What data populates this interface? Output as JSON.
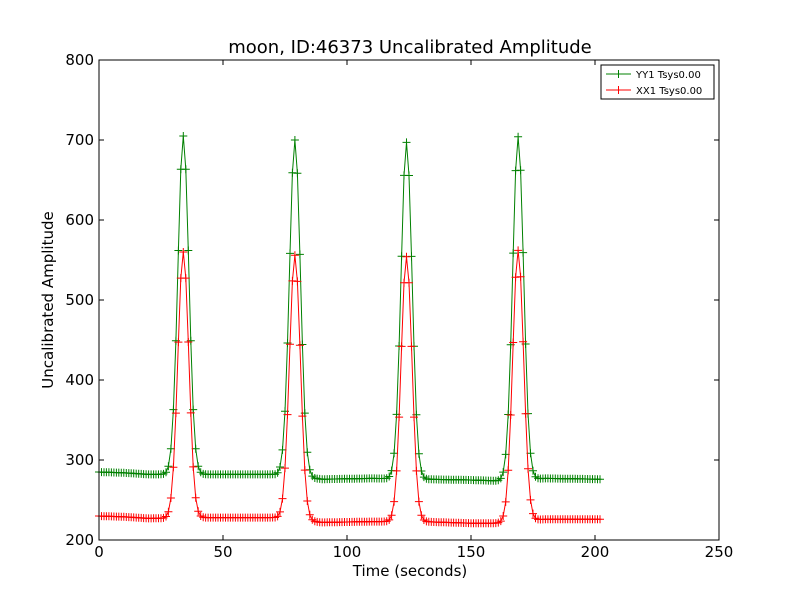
{
  "chart_data": {
    "type": "line",
    "title": "moon, ID:46373 Uncalibrated Amplitude",
    "xlabel": "Time (seconds)",
    "ylabel": "Uncalibrated Amplitude",
    "xlim": [
      0,
      250
    ],
    "ylim": [
      200,
      800
    ],
    "xticks": [
      0,
      50,
      100,
      150,
      200,
      250
    ],
    "yticks": [
      200,
      300,
      400,
      500,
      600,
      700,
      800
    ],
    "grid": false,
    "legend_position": "top-right",
    "marker": "plus",
    "x_range": [
      0,
      202
    ],
    "x_step": 1,
    "peaks_x": [
      34,
      79,
      124,
      169
    ],
    "peak_width_sd": 2.2,
    "series": [
      {
        "name": "YY1 Tsys0.00",
        "color": "#008000",
        "peaks": [
          705,
          700,
          697,
          704
        ],
        "baseline": [
          [
            0,
            285
          ],
          [
            10,
            284
          ],
          [
            20,
            282
          ],
          [
            45,
            282
          ],
          [
            70,
            282
          ],
          [
            90,
            276
          ],
          [
            110,
            277
          ],
          [
            130,
            276
          ],
          [
            150,
            275
          ],
          [
            160,
            274
          ],
          [
            180,
            277
          ],
          [
            202,
            276
          ]
        ]
      },
      {
        "name": "XX1 Tsys0.00",
        "color": "#ff0000",
        "peaks": [
          560,
          556,
          554,
          562
        ],
        "baseline": [
          [
            0,
            230
          ],
          [
            10,
            229
          ],
          [
            20,
            227
          ],
          [
            45,
            228
          ],
          [
            70,
            228
          ],
          [
            90,
            222
          ],
          [
            110,
            223
          ],
          [
            130,
            223
          ],
          [
            150,
            221
          ],
          [
            160,
            221
          ],
          [
            180,
            226
          ],
          [
            202,
            226
          ]
        ]
      }
    ]
  }
}
